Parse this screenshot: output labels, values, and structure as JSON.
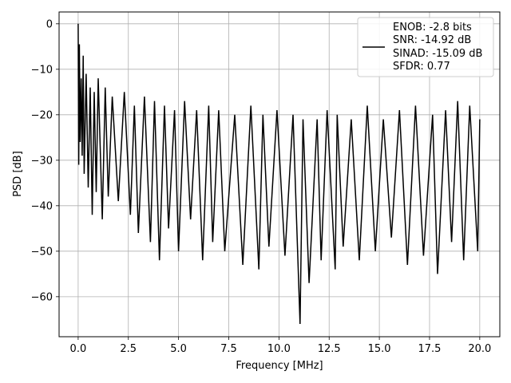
{
  "chart_data": {
    "type": "line",
    "xlabel": "Frequency [MHz]",
    "ylabel": "PSD [dB]",
    "xlim": [
      -0.95,
      21.0
    ],
    "ylim": [
      -68.8,
      2.6
    ],
    "xticks": [
      0.0,
      2.5,
      5.0,
      7.5,
      10.0,
      12.5,
      15.0,
      17.5,
      20.0
    ],
    "xtick_labels": [
      "0.0",
      "2.5",
      "5.0",
      "7.5",
      "10.0",
      "12.5",
      "15.0",
      "17.5",
      "20.0"
    ],
    "yticks": [
      0,
      -10,
      -20,
      -30,
      -40,
      -50,
      -60
    ],
    "ytick_labels": [
      "0",
      "−10",
      "−20",
      "−30",
      "−40",
      "−50",
      "−60"
    ],
    "grid": true,
    "legend_position": "top-right",
    "legend_lines": [
      "ENOB: -2.8 bits",
      "SNR: -14.92 dB",
      "SINAD: -15.09 dB",
      "SFDR: 0.77"
    ],
    "series": [
      {
        "color": "#000000",
        "x": [
          0.0,
          0.03,
          0.06,
          0.1,
          0.15,
          0.2,
          0.25,
          0.3,
          0.4,
          0.5,
          0.6,
          0.7,
          0.8,
          0.9,
          1.0,
          1.2,
          1.35,
          1.5,
          1.7,
          2.0,
          2.3,
          2.6,
          2.8,
          3.0,
          3.3,
          3.6,
          3.8,
          4.05,
          4.3,
          4.5,
          4.8,
          5.0,
          5.3,
          5.6,
          5.9,
          6.2,
          6.5,
          6.7,
          7.0,
          7.3,
          7.8,
          8.2,
          8.6,
          9.0,
          9.2,
          9.5,
          9.9,
          10.3,
          10.7,
          11.05,
          11.2,
          11.5,
          11.9,
          12.1,
          12.4,
          12.8,
          12.9,
          13.2,
          13.6,
          14.0,
          14.4,
          14.8,
          15.2,
          15.6,
          16.0,
          16.4,
          16.8,
          17.2,
          17.65,
          17.9,
          18.3,
          18.6,
          18.9,
          19.2,
          19.5,
          19.9,
          20.0
        ],
        "y": [
          0,
          -31,
          -4.5,
          -26,
          -12,
          -29,
          -7,
          -33,
          -11,
          -36,
          -14,
          -42,
          -15,
          -37,
          -12,
          -43,
          -14,
          -38,
          -16,
          -39,
          -15,
          -42,
          -18,
          -46,
          -16,
          -48,
          -17,
          -52,
          -18,
          -45,
          -19,
          -50,
          -17,
          -43,
          -19,
          -52,
          -18,
          -48,
          -19,
          -50,
          -20,
          -53,
          -18,
          -54,
          -20,
          -49,
          -19,
          -51,
          -20,
          -66,
          -21,
          -57,
          -21,
          -52,
          -19,
          -54,
          -20,
          -49,
          -21,
          -52,
          -18,
          -50,
          -21,
          -47,
          -19,
          -53,
          -18,
          -51,
          -20,
          -55,
          -19,
          -48,
          -17,
          -52,
          -18,
          -50,
          -21
        ]
      }
    ]
  }
}
